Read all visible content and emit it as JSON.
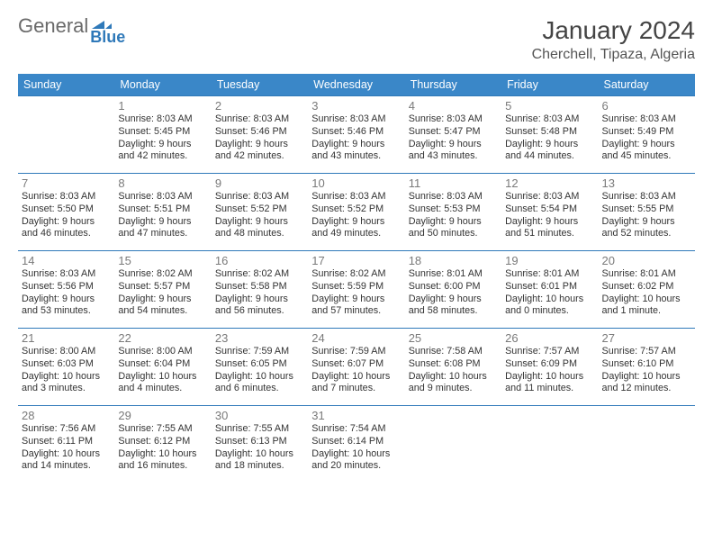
{
  "logo": {
    "word1": "General",
    "word2": "Blue"
  },
  "title": "January 2024",
  "location": "Cherchell, Tipaza, Algeria",
  "colors": {
    "header_bg": "#3a87c8",
    "header_text": "#ffffff",
    "row_border": "#2f79b9",
    "daynum_color": "#7a7a7a",
    "body_text": "#333333",
    "logo_gray": "#6a6a6a",
    "logo_blue": "#2f79b9",
    "page_bg": "#ffffff"
  },
  "day_headers": [
    "Sunday",
    "Monday",
    "Tuesday",
    "Wednesday",
    "Thursday",
    "Friday",
    "Saturday"
  ],
  "weeks": [
    [
      null,
      {
        "n": "1",
        "sr": "8:03 AM",
        "ss": "5:45 PM",
        "dl": "9 hours and 42 minutes."
      },
      {
        "n": "2",
        "sr": "8:03 AM",
        "ss": "5:46 PM",
        "dl": "9 hours and 42 minutes."
      },
      {
        "n": "3",
        "sr": "8:03 AM",
        "ss": "5:46 PM",
        "dl": "9 hours and 43 minutes."
      },
      {
        "n": "4",
        "sr": "8:03 AM",
        "ss": "5:47 PM",
        "dl": "9 hours and 43 minutes."
      },
      {
        "n": "5",
        "sr": "8:03 AM",
        "ss": "5:48 PM",
        "dl": "9 hours and 44 minutes."
      },
      {
        "n": "6",
        "sr": "8:03 AM",
        "ss": "5:49 PM",
        "dl": "9 hours and 45 minutes."
      }
    ],
    [
      {
        "n": "7",
        "sr": "8:03 AM",
        "ss": "5:50 PM",
        "dl": "9 hours and 46 minutes."
      },
      {
        "n": "8",
        "sr": "8:03 AM",
        "ss": "5:51 PM",
        "dl": "9 hours and 47 minutes."
      },
      {
        "n": "9",
        "sr": "8:03 AM",
        "ss": "5:52 PM",
        "dl": "9 hours and 48 minutes."
      },
      {
        "n": "10",
        "sr": "8:03 AM",
        "ss": "5:52 PM",
        "dl": "9 hours and 49 minutes."
      },
      {
        "n": "11",
        "sr": "8:03 AM",
        "ss": "5:53 PM",
        "dl": "9 hours and 50 minutes."
      },
      {
        "n": "12",
        "sr": "8:03 AM",
        "ss": "5:54 PM",
        "dl": "9 hours and 51 minutes."
      },
      {
        "n": "13",
        "sr": "8:03 AM",
        "ss": "5:55 PM",
        "dl": "9 hours and 52 minutes."
      }
    ],
    [
      {
        "n": "14",
        "sr": "8:03 AM",
        "ss": "5:56 PM",
        "dl": "9 hours and 53 minutes."
      },
      {
        "n": "15",
        "sr": "8:02 AM",
        "ss": "5:57 PM",
        "dl": "9 hours and 54 minutes."
      },
      {
        "n": "16",
        "sr": "8:02 AM",
        "ss": "5:58 PM",
        "dl": "9 hours and 56 minutes."
      },
      {
        "n": "17",
        "sr": "8:02 AM",
        "ss": "5:59 PM",
        "dl": "9 hours and 57 minutes."
      },
      {
        "n": "18",
        "sr": "8:01 AM",
        "ss": "6:00 PM",
        "dl": "9 hours and 58 minutes."
      },
      {
        "n": "19",
        "sr": "8:01 AM",
        "ss": "6:01 PM",
        "dl": "10 hours and 0 minutes."
      },
      {
        "n": "20",
        "sr": "8:01 AM",
        "ss": "6:02 PM",
        "dl": "10 hours and 1 minute."
      }
    ],
    [
      {
        "n": "21",
        "sr": "8:00 AM",
        "ss": "6:03 PM",
        "dl": "10 hours and 3 minutes."
      },
      {
        "n": "22",
        "sr": "8:00 AM",
        "ss": "6:04 PM",
        "dl": "10 hours and 4 minutes."
      },
      {
        "n": "23",
        "sr": "7:59 AM",
        "ss": "6:05 PM",
        "dl": "10 hours and 6 minutes."
      },
      {
        "n": "24",
        "sr": "7:59 AM",
        "ss": "6:07 PM",
        "dl": "10 hours and 7 minutes."
      },
      {
        "n": "25",
        "sr": "7:58 AM",
        "ss": "6:08 PM",
        "dl": "10 hours and 9 minutes."
      },
      {
        "n": "26",
        "sr": "7:57 AM",
        "ss": "6:09 PM",
        "dl": "10 hours and 11 minutes."
      },
      {
        "n": "27",
        "sr": "7:57 AM",
        "ss": "6:10 PM",
        "dl": "10 hours and 12 minutes."
      }
    ],
    [
      {
        "n": "28",
        "sr": "7:56 AM",
        "ss": "6:11 PM",
        "dl": "10 hours and 14 minutes."
      },
      {
        "n": "29",
        "sr": "7:55 AM",
        "ss": "6:12 PM",
        "dl": "10 hours and 16 minutes."
      },
      {
        "n": "30",
        "sr": "7:55 AM",
        "ss": "6:13 PM",
        "dl": "10 hours and 18 minutes."
      },
      {
        "n": "31",
        "sr": "7:54 AM",
        "ss": "6:14 PM",
        "dl": "10 hours and 20 minutes."
      },
      null,
      null,
      null
    ]
  ],
  "labels": {
    "sunrise": "Sunrise:",
    "sunset": "Sunset:",
    "daylight": "Daylight:"
  }
}
